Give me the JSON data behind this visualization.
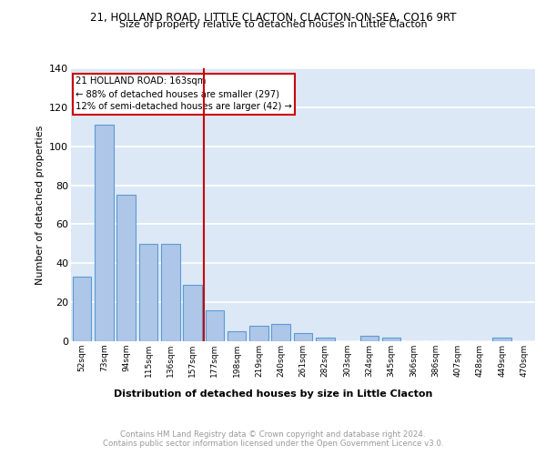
{
  "title1": "21, HOLLAND ROAD, LITTLE CLACTON, CLACTON-ON-SEA, CO16 9RT",
  "title2": "Size of property relative to detached houses in Little Clacton",
  "xlabel": "Distribution of detached houses by size in Little Clacton",
  "ylabel": "Number of detached properties",
  "categories": [
    "52sqm",
    "73sqm",
    "94sqm",
    "115sqm",
    "136sqm",
    "157sqm",
    "177sqm",
    "198sqm",
    "219sqm",
    "240sqm",
    "261sqm",
    "282sqm",
    "303sqm",
    "324sqm",
    "345sqm",
    "366sqm",
    "386sqm",
    "407sqm",
    "428sqm",
    "449sqm",
    "470sqm"
  ],
  "values": [
    33,
    111,
    75,
    50,
    50,
    29,
    16,
    5,
    8,
    9,
    4,
    2,
    0,
    3,
    2,
    0,
    0,
    0,
    0,
    2,
    0
  ],
  "bar_color": "#aec6e8",
  "bar_edge_color": "#5b9bd5",
  "vline_x": 5.5,
  "vline_color": "#cc0000",
  "annotation_lines": [
    "21 HOLLAND ROAD: 163sqm",
    "← 88% of detached houses are smaller (297)",
    "12% of semi-detached houses are larger (42) →"
  ],
  "annotation_box_color": "#ffffff",
  "annotation_box_edge_color": "#cc0000",
  "ylim": [
    0,
    140
  ],
  "yticks": [
    0,
    20,
    40,
    60,
    80,
    100,
    120,
    140
  ],
  "background_color": "#dce8f5",
  "grid_color": "#ffffff",
  "footer_text": "Contains HM Land Registry data © Crown copyright and database right 2024.\nContains public sector information licensed under the Open Government Licence v3.0.",
  "footer_color": "#999999"
}
